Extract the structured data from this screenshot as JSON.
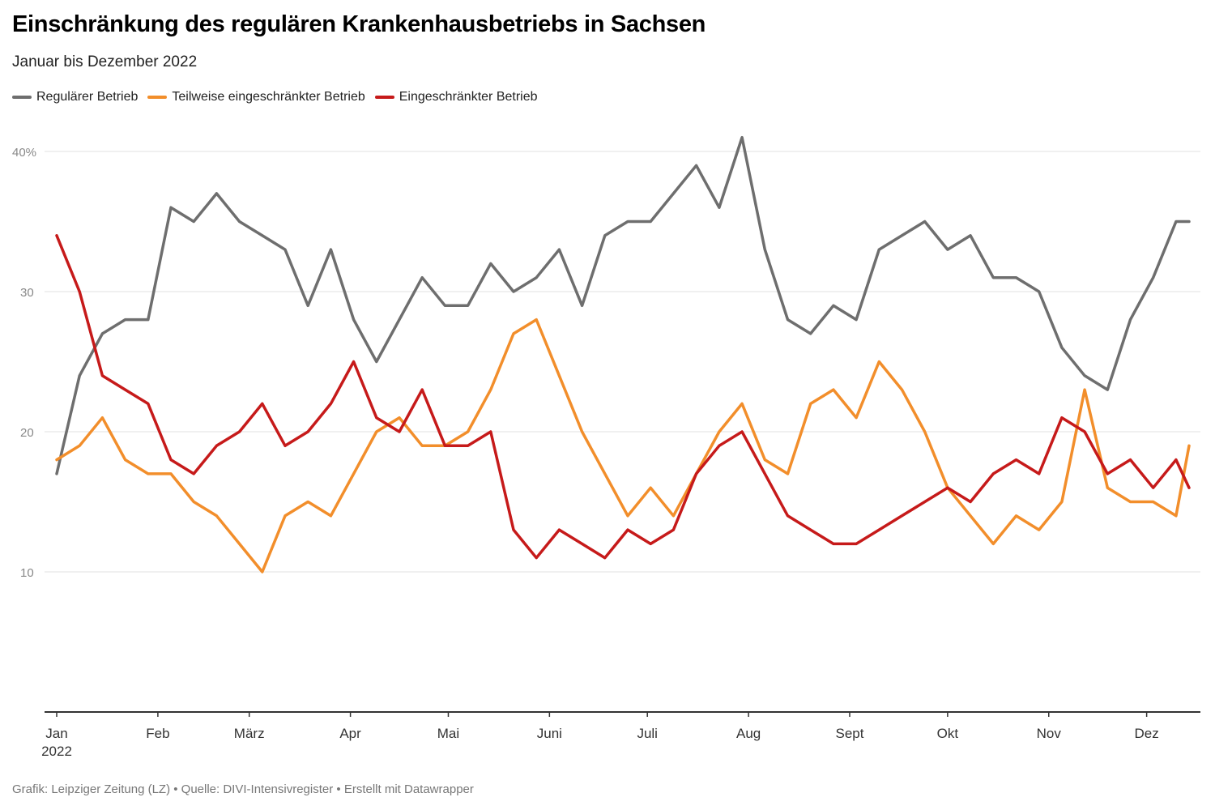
{
  "chart_data": {
    "type": "line",
    "title": "Einschränkung des regulären Krankenhausbetriebs in Sachsen",
    "subtitle": "Januar bis Dezember 2022",
    "xlabel": "",
    "ylabel": "",
    "ylim": [
      0,
      40
    ],
    "yticks": [
      {
        "v": 10,
        "label": "10"
      },
      {
        "v": 20,
        "label": "20"
      },
      {
        "v": 30,
        "label": "30"
      },
      {
        "v": 40,
        "label": "40%"
      }
    ],
    "xticks": [
      {
        "day": 0,
        "label": "Jan",
        "label2": "2022"
      },
      {
        "day": 31,
        "label": "Feb"
      },
      {
        "day": 59,
        "label": "März"
      },
      {
        "day": 90,
        "label": "Apr"
      },
      {
        "day": 120,
        "label": "Mai"
      },
      {
        "day": 151,
        "label": "Juni"
      },
      {
        "day": 181,
        "label": "Juli"
      },
      {
        "day": 212,
        "label": "Aug"
      },
      {
        "day": 243,
        "label": "Sept"
      },
      {
        "day": 273,
        "label": "Okt"
      },
      {
        "day": 304,
        "label": "Nov"
      },
      {
        "day": 334,
        "label": "Dez"
      }
    ],
    "x_days": [
      0,
      7,
      14,
      21,
      28,
      35,
      42,
      49,
      56,
      63,
      70,
      77,
      84,
      91,
      98,
      105,
      112,
      119,
      126,
      133,
      140,
      147,
      154,
      161,
      168,
      175,
      182,
      189,
      196,
      203,
      210,
      217,
      224,
      231,
      238,
      245,
      252,
      259,
      266,
      273,
      280,
      287,
      294,
      301,
      308,
      315,
      322,
      329,
      336,
      343,
      347
    ],
    "series": [
      {
        "name": "Regulärer Betrieb",
        "color": "#6e6e6e",
        "values": [
          17,
          24,
          27,
          28,
          28,
          36,
          35,
          37,
          35,
          34,
          33,
          29,
          33,
          28,
          25,
          28,
          31,
          29,
          29,
          32,
          30,
          31,
          33,
          29,
          34,
          35,
          35,
          37,
          39,
          36,
          41,
          33,
          28,
          27,
          29,
          28,
          33,
          34,
          35,
          33,
          34,
          31,
          31,
          30,
          26,
          24,
          23,
          28,
          31,
          35,
          35
        ]
      },
      {
        "name": "Teilweise eingeschränkter Betrieb",
        "color": "#f28e2b",
        "values": [
          18,
          19,
          21,
          18,
          17,
          17,
          15,
          14,
          12,
          10,
          14,
          15,
          14,
          17,
          20,
          21,
          19,
          19,
          20,
          23,
          27,
          28,
          24,
          20,
          17,
          14,
          16,
          14,
          17,
          20,
          22,
          18,
          17,
          22,
          23,
          21,
          25,
          23,
          20,
          16,
          14,
          12,
          14,
          13,
          15,
          23,
          16,
          15,
          15,
          14,
          19
        ]
      },
      {
        "name": "Eingeschränkter Betrieb",
        "color": "#c61a1a",
        "values": [
          34,
          30,
          24,
          23,
          22,
          18,
          17,
          19,
          20,
          22,
          19,
          20,
          22,
          25,
          21,
          20,
          23,
          19,
          19,
          20,
          13,
          11,
          13,
          12,
          11,
          13,
          12,
          13,
          17,
          19,
          20,
          17,
          14,
          13,
          12,
          12,
          13,
          14,
          15,
          16,
          15,
          17,
          18,
          17,
          21,
          20,
          17,
          18,
          16,
          18,
          16
        ]
      }
    ],
    "legend_position": "top-left"
  },
  "footer": "Grafik: Leipziger Zeitung (LZ) • Quelle: DIVI-Intensivregister • Erstellt mit Datawrapper"
}
